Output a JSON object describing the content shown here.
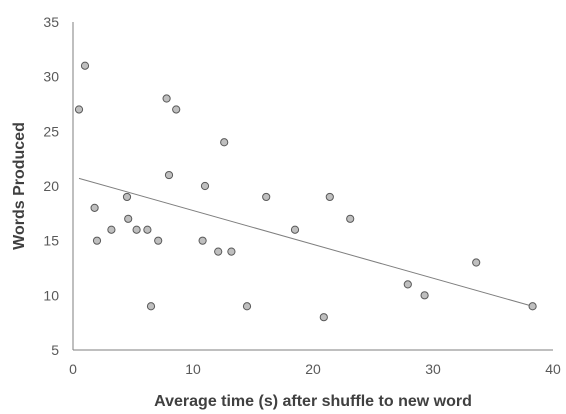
{
  "chart_data": {
    "type": "scatter",
    "title": "",
    "xlabel": "Average time (s) after shuffle to new word",
    "ylabel": "Words Produced",
    "xlim": [
      0,
      40
    ],
    "ylim": [
      5,
      35
    ],
    "x_ticks": [
      0,
      10,
      20,
      30,
      40
    ],
    "y_ticks": [
      5,
      10,
      15,
      20,
      25,
      30,
      35
    ],
    "x_tick_labels": [
      "0",
      "10",
      "20",
      "30",
      "40"
    ],
    "y_tick_labels": [
      "5",
      "10",
      "15",
      "20",
      "25",
      "30",
      "35"
    ],
    "grid": false,
    "legend": "none",
    "series": [
      {
        "points": [
          {
            "x": 0.5,
            "y": 27
          },
          {
            "x": 1.0,
            "y": 31
          },
          {
            "x": 1.8,
            "y": 18
          },
          {
            "x": 2.0,
            "y": 15
          },
          {
            "x": 3.2,
            "y": 16
          },
          {
            "x": 4.5,
            "y": 19
          },
          {
            "x": 4.6,
            "y": 17
          },
          {
            "x": 5.3,
            "y": 16
          },
          {
            "x": 6.2,
            "y": 16
          },
          {
            "x": 6.5,
            "y": 9
          },
          {
            "x": 7.1,
            "y": 15
          },
          {
            "x": 7.8,
            "y": 28
          },
          {
            "x": 8.0,
            "y": 21
          },
          {
            "x": 8.6,
            "y": 27
          },
          {
            "x": 10.8,
            "y": 15
          },
          {
            "x": 11.0,
            "y": 20
          },
          {
            "x": 12.1,
            "y": 14
          },
          {
            "x": 12.6,
            "y": 24
          },
          {
            "x": 13.2,
            "y": 14
          },
          {
            "x": 14.5,
            "y": 9
          },
          {
            "x": 16.1,
            "y": 19
          },
          {
            "x": 18.5,
            "y": 16
          },
          {
            "x": 20.9,
            "y": 8
          },
          {
            "x": 21.4,
            "y": 19
          },
          {
            "x": 23.1,
            "y": 17
          },
          {
            "x": 27.9,
            "y": 11
          },
          {
            "x": 29.3,
            "y": 10
          },
          {
            "x": 33.6,
            "y": 13
          },
          {
            "x": 38.3,
            "y": 9
          }
        ]
      }
    ],
    "trendline": {
      "x_start": 0.5,
      "y_start": 20.7,
      "x_end": 38.3,
      "y_end": 9.0
    },
    "colors": {
      "marker_fill": "#bfbfbf",
      "marker_stroke": "#595959",
      "trendline": "#7f7f7f",
      "axis": "#7f7f7f"
    }
  }
}
